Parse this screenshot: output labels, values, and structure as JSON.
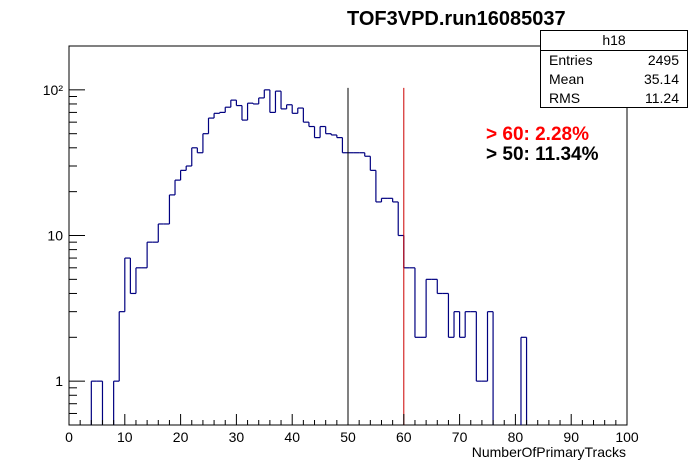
{
  "title": "TOF3VPD.run16085037",
  "stats": {
    "name": "h18",
    "rows": [
      {
        "label": "Entries",
        "value": "2495"
      },
      {
        "label": "Mean",
        "value": "35.14"
      },
      {
        "label": "RMS",
        "value": "11.24"
      }
    ]
  },
  "annotations": [
    {
      "text": "> 60: 2.28%",
      "color": "#ff0000"
    },
    {
      "text": "> 50: 11.34%",
      "color": "#000000"
    }
  ],
  "colors": {
    "histogram": "#000080",
    "cut50": "#000000",
    "cut60": "#cc0000"
  },
  "chart_data": {
    "type": "bar",
    "histogram": true,
    "title": "TOF3VPD.run16085037",
    "xlabel": "NumberOfPrimaryTracks",
    "ylabel": "",
    "xlim": [
      0,
      100
    ],
    "ylim": [
      0.5,
      200
    ],
    "log_y": true,
    "bin_width": 1,
    "x_ticks": [
      0,
      10,
      20,
      30,
      40,
      50,
      60,
      70,
      80,
      90,
      100
    ],
    "y_ticks": [
      {
        "value": 1,
        "label": "1"
      },
      {
        "value": 10,
        "label": "10"
      },
      {
        "value": 100,
        "label": "10²"
      }
    ],
    "vertical_lines": [
      50,
      60
    ],
    "bins_low_edge": [
      4,
      5,
      8,
      9,
      10,
      11,
      12,
      13,
      14,
      15,
      16,
      17,
      18,
      19,
      20,
      21,
      22,
      23,
      24,
      25,
      26,
      27,
      28,
      29,
      30,
      31,
      32,
      33,
      34,
      35,
      36,
      37,
      38,
      39,
      40,
      41,
      42,
      43,
      44,
      45,
      46,
      47,
      48,
      49,
      50,
      51,
      52,
      53,
      54,
      55,
      56,
      57,
      58,
      59,
      60,
      61,
      62,
      63,
      64,
      65,
      66,
      67,
      68,
      69,
      70,
      71,
      72,
      73,
      74,
      75,
      81
    ],
    "values": [
      1,
      1,
      1,
      3,
      7,
      4,
      6,
      6,
      9,
      9,
      12,
      12,
      19,
      24,
      28,
      30,
      40,
      37,
      50,
      64,
      69,
      70,
      76,
      85,
      78,
      62,
      81,
      80,
      88,
      100,
      70,
      98,
      74,
      79,
      69,
      75,
      60,
      56,
      47,
      56,
      50,
      49,
      47,
      37,
      37,
      37,
      37,
      35,
      28,
      17,
      18,
      18,
      17,
      10,
      6,
      6,
      2,
      2,
      5,
      5,
      4,
      4,
      2,
      3,
      2,
      3,
      3,
      1,
      1,
      3,
      2
    ]
  }
}
